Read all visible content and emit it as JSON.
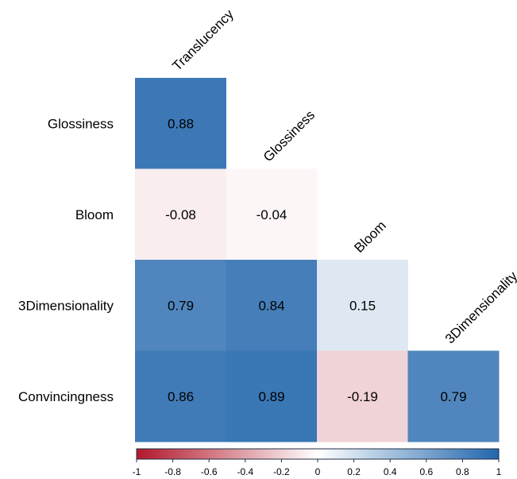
{
  "chart_data": {
    "type": "heatmap",
    "variant": "lower-triangle-correlation-matrix",
    "column_labels": [
      "Translucency",
      "Glossiness",
      "Bloom",
      "3Dimensionality"
    ],
    "row_labels": [
      "Glossiness",
      "Bloom",
      "3Dimensionality",
      "Convincingness"
    ],
    "matrix": [
      [
        0.88,
        null,
        null,
        null
      ],
      [
        -0.08,
        -0.04,
        null,
        null
      ],
      [
        0.79,
        0.84,
        0.15,
        null
      ],
      [
        0.86,
        0.89,
        -0.19,
        0.79
      ]
    ],
    "cell_labels": [
      [
        "0.88",
        "",
        "",
        ""
      ],
      [
        "-0.08",
        "-0.04",
        "",
        ""
      ],
      [
        "0.79",
        "0.84",
        "0.15",
        ""
      ],
      [
        "0.86",
        "0.89",
        "-0.19",
        "0.79"
      ]
    ],
    "colorbar": {
      "range": [
        -1,
        1
      ],
      "ticks": [
        -1,
        -0.8,
        -0.6,
        -0.4,
        -0.2,
        0,
        0.2,
        0.4,
        0.6,
        0.8,
        1
      ],
      "tick_labels": [
        "-1",
        "-0.8",
        "-0.6",
        "-0.4",
        "-0.2",
        "0",
        "0.2",
        "0.4",
        "0.6",
        "0.8",
        "1"
      ],
      "orientation": "horizontal",
      "placement": "bottom"
    },
    "colors": {
      "negative": "#B2182B",
      "neutral": "#FFFFFF",
      "positive": "#2166AC",
      "colorbar_border": "#1F2E45"
    }
  }
}
